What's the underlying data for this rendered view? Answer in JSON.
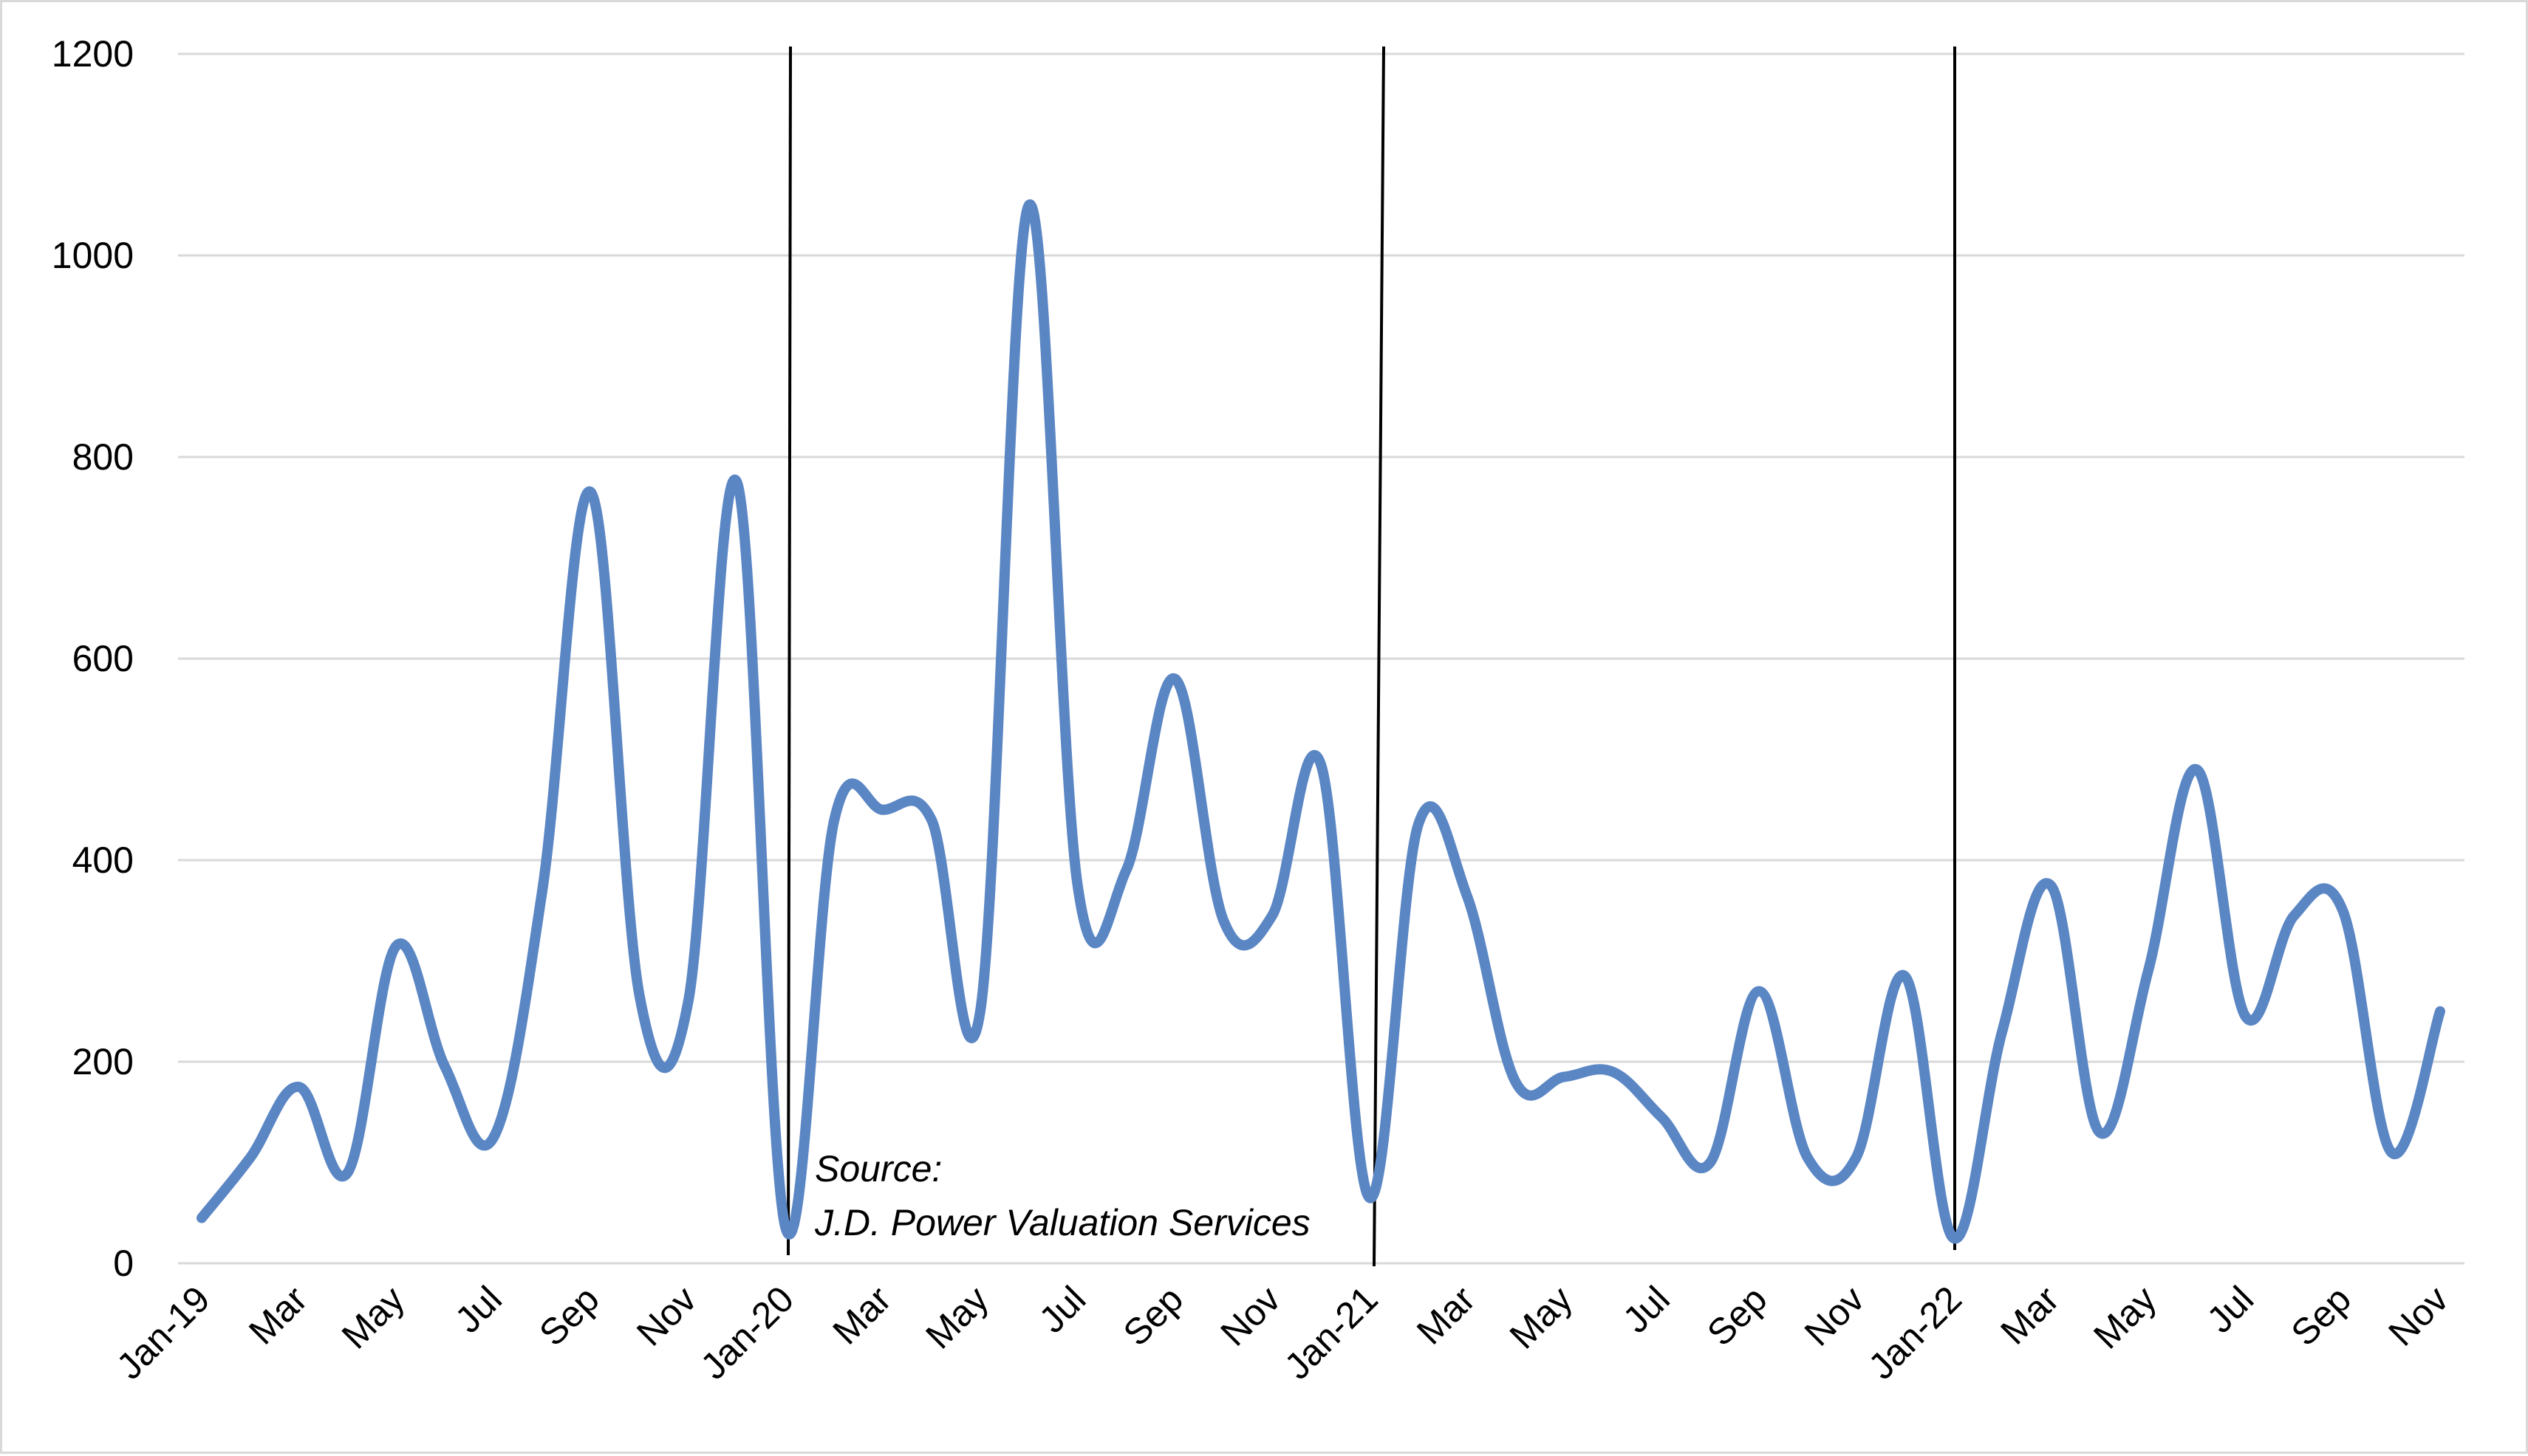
{
  "chart_data": {
    "type": "line",
    "title": "",
    "xlabel": "",
    "ylabel": "",
    "ylim": [
      0,
      1200
    ],
    "yticks": [
      0,
      200,
      400,
      600,
      800,
      1000,
      1200
    ],
    "grid": "horizontal",
    "legend": "none",
    "colors": {
      "line": "#5b86c4",
      "grid": "#d9d9d9",
      "divider": "#000000"
    },
    "x_tick_labels": [
      "Jan-19",
      "Mar",
      "May",
      "Jul",
      "Sep",
      "Nov",
      "Jan-20",
      "Mar",
      "May",
      "Jul",
      "Sep",
      "Nov",
      "Jan-21",
      "Mar",
      "May",
      "Jul",
      "Sep",
      "Nov",
      "Jan-22",
      "Mar",
      "May",
      "Jul",
      "Sep",
      "Nov"
    ],
    "x_tick_month_index": [
      0,
      2,
      4,
      6,
      8,
      10,
      12,
      14,
      16,
      18,
      20,
      22,
      24,
      26,
      28,
      30,
      32,
      34,
      36,
      38,
      40,
      42,
      44,
      46
    ],
    "x": [
      "Jan-19",
      "Feb-19",
      "Mar-19",
      "Apr-19",
      "May-19",
      "Jun-19",
      "Jul-19",
      "Aug-19",
      "Sep-19",
      "Oct-19",
      "Nov-19",
      "Dec-19",
      "Jan-20",
      "Feb-20",
      "Mar-20",
      "Apr-20",
      "May-20",
      "Jun-20",
      "Jul-20",
      "Aug-20",
      "Sep-20",
      "Oct-20",
      "Nov-20",
      "Dec-20",
      "Jan-21",
      "Feb-21",
      "Mar-21",
      "Apr-21",
      "May-21",
      "Jun-21",
      "Jul-21",
      "Aug-21",
      "Sep-21",
      "Oct-21",
      "Nov-21",
      "Dec-21",
      "Jan-22",
      "Feb-22",
      "Mar-22",
      "Apr-22",
      "May-22",
      "Jun-22",
      "Jul-22",
      "Aug-22",
      "Sep-22",
      "Oct-22",
      "Nov-22"
    ],
    "series": [
      {
        "values": [
          45,
          105,
          175,
          90,
          315,
          195,
          125,
          370,
          765,
          265,
          260,
          775,
          35,
          440,
          450,
          440,
          250,
          1050,
          375,
          390,
          580,
          340,
          345,
          495,
          65,
          435,
          365,
          180,
          185,
          190,
          145,
          100,
          270,
          105,
          105,
          285,
          25,
          230,
          375,
          130,
          290,
          490,
          245,
          345,
          350,
          110,
          250
        ]
      }
    ],
    "vertical_markers": [
      "Jan-20",
      "Jan-21",
      "Jan-22"
    ],
    "annotations": [
      {
        "text": "Source:",
        "at": "Jan-20"
      },
      {
        "text": "J.D. Power Valuation Services",
        "at": "Jan-20"
      }
    ]
  }
}
